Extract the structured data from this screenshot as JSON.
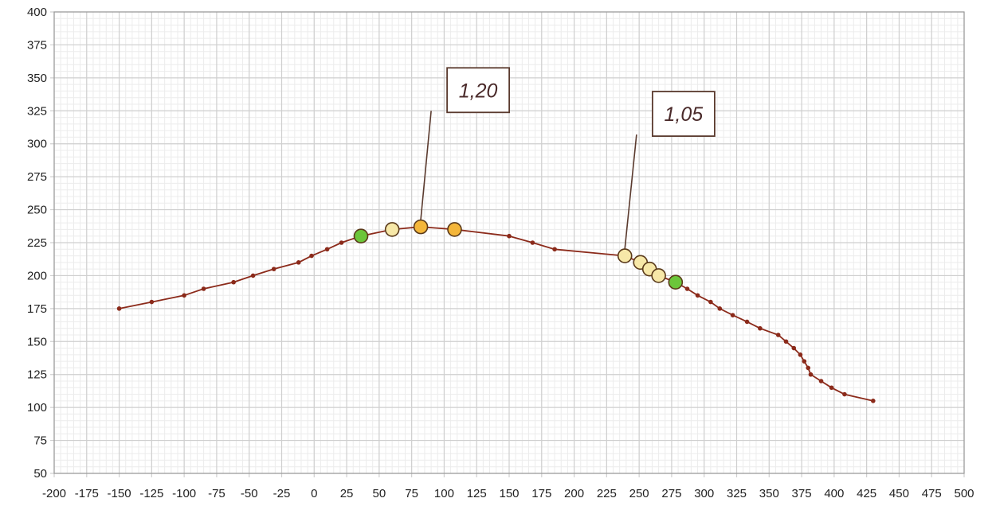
{
  "chart_data": {
    "type": "line",
    "title": "",
    "xlabel": "",
    "ylabel": "",
    "xlim": [
      -200,
      500
    ],
    "ylim": [
      50,
      400
    ],
    "x_major_step": 25,
    "y_major_step": 25,
    "grid": true,
    "minor_grid": true,
    "legend": "none",
    "x_tick_labels": [
      "-200",
      "-175",
      "-150",
      "-125",
      "-100",
      "-75",
      "-50",
      "-25",
      "0",
      "25",
      "50",
      "75",
      "100",
      "125",
      "150",
      "175",
      "200",
      "225",
      "250",
      "275",
      "300",
      "325",
      "350",
      "375",
      "400",
      "425",
      "450",
      "475",
      "500"
    ],
    "y_tick_labels": [
      "50",
      "75",
      "100",
      "125",
      "150",
      "175",
      "200",
      "225",
      "250",
      "275",
      "300",
      "325",
      "350",
      "375",
      "400"
    ],
    "colors": {
      "line": "#8b2a1a",
      "grid_major": "#cfcfcf",
      "grid_minor": "#ececec",
      "axis": "#9a9a9a",
      "marker_green": "#6cc63a",
      "marker_orange": "#f4b63a",
      "marker_pale": "#f7e8a8",
      "marker_edge": "#5a3a1a",
      "annotation_border": "#5a3a2e"
    },
    "series": [
      {
        "points": [
          [
            -150,
            175
          ],
          [
            -125,
            180
          ],
          [
            -100,
            185
          ],
          [
            -85,
            190
          ],
          [
            -62,
            195
          ],
          [
            -47,
            200
          ],
          [
            -31,
            205
          ],
          [
            -12,
            210
          ],
          [
            -2,
            215
          ],
          [
            10,
            220
          ],
          [
            21,
            225
          ],
          [
            36,
            230
          ],
          [
            60,
            235
          ],
          [
            82,
            237
          ],
          [
            108,
            235
          ],
          [
            150,
            230
          ],
          [
            168,
            225
          ],
          [
            185,
            220
          ],
          [
            239,
            215
          ],
          [
            251,
            210
          ],
          [
            258,
            205
          ],
          [
            265,
            200
          ],
          [
            278,
            195
          ],
          [
            287,
            190
          ],
          [
            295,
            185
          ],
          [
            305,
            180
          ],
          [
            312,
            175
          ],
          [
            322,
            170
          ],
          [
            333,
            165
          ],
          [
            343,
            160
          ],
          [
            357,
            155
          ],
          [
            363,
            150
          ],
          [
            369,
            145
          ],
          [
            374,
            140
          ],
          [
            377,
            135
          ],
          [
            380,
            130
          ],
          [
            382,
            125
          ],
          [
            390,
            120
          ],
          [
            398,
            115
          ],
          [
            408,
            110
          ],
          [
            430,
            105
          ]
        ]
      }
    ],
    "highlight_markers": [
      {
        "x": 36,
        "y": 230,
        "style": "green"
      },
      {
        "x": 60,
        "y": 235,
        "style": "pale"
      },
      {
        "x": 82,
        "y": 237,
        "style": "orange"
      },
      {
        "x": 108,
        "y": 235,
        "style": "orange"
      },
      {
        "x": 239,
        "y": 215,
        "style": "pale"
      },
      {
        "x": 251,
        "y": 210,
        "style": "pale"
      },
      {
        "x": 258,
        "y": 205,
        "style": "pale"
      },
      {
        "x": 265,
        "y": 200,
        "style": "pale"
      },
      {
        "x": 278,
        "y": 195,
        "style": "green"
      }
    ],
    "annotations": [
      {
        "text": "1,20",
        "target": [
          82,
          237
        ],
        "anchor": [
          90,
          325
        ]
      },
      {
        "text": "1,05",
        "target": [
          239,
          215
        ],
        "anchor": [
          248,
          307
        ]
      }
    ]
  }
}
